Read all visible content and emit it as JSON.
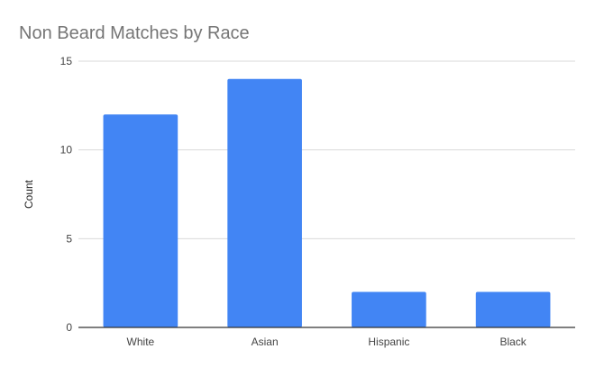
{
  "chart_data": {
    "type": "bar",
    "title": "Non Beard Matches by Race",
    "xlabel": "",
    "ylabel": "Count",
    "categories": [
      "White",
      "Asian",
      "Hispanic",
      "Black"
    ],
    "values": [
      12,
      14,
      2,
      2
    ],
    "ylim": [
      0,
      15
    ],
    "yticks": [
      "0",
      "5",
      "10",
      "15"
    ],
    "grid": true,
    "legend": "none",
    "colors": {
      "bar": "#4285f4",
      "grid": "#d9d9d9",
      "axis": "#333333",
      "title": "#757575"
    }
  }
}
